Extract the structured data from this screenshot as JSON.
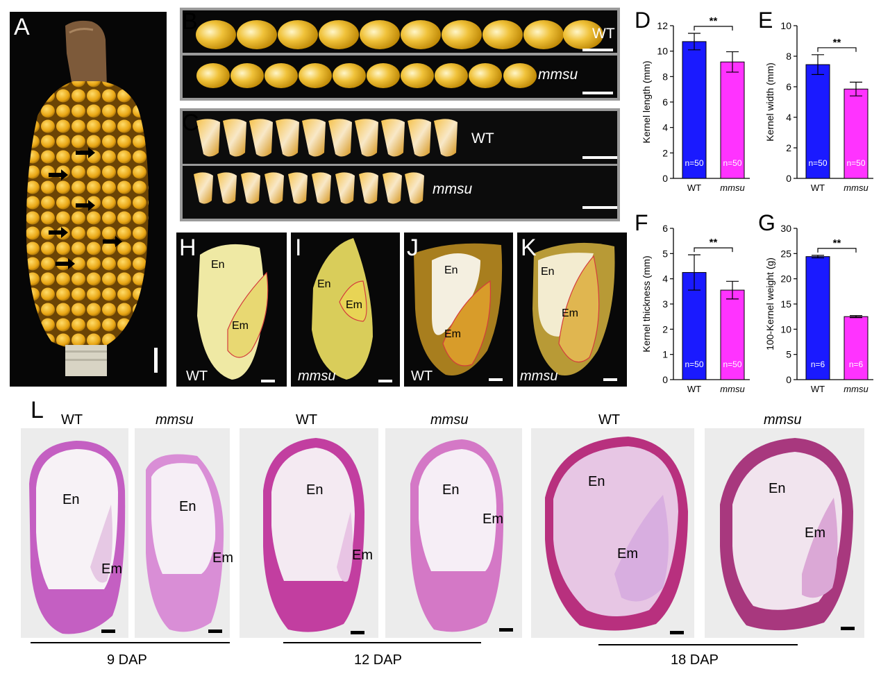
{
  "panels": {
    "A": {
      "letter": "A"
    },
    "B": {
      "letter": "B",
      "wt": "WT",
      "mut": "mmsu"
    },
    "C": {
      "letter": "C",
      "wt": "WT",
      "mut": "mmsu"
    },
    "H": {
      "letter": "H",
      "genotype": "WT",
      "en": "En",
      "em": "Em"
    },
    "I": {
      "letter": "I",
      "genotype": "mmsu",
      "en": "En",
      "em": "Em"
    },
    "J": {
      "letter": "J",
      "genotype": "WT",
      "en": "En",
      "em": "Em"
    },
    "K": {
      "letter": "K",
      "genotype": "mmsu",
      "en": "En",
      "em": "Em"
    },
    "L": {
      "letter": "L",
      "sections": [
        {
          "genotype": "WT",
          "en": "En",
          "em": "Em"
        },
        {
          "genotype": "mmsu",
          "en": "En",
          "em": "Em"
        },
        {
          "genotype": "WT",
          "en": "En",
          "em": "Em"
        },
        {
          "genotype": "mmsu",
          "en": "En",
          "em": "Em"
        },
        {
          "genotype": "WT",
          "en": "En",
          "em": "Em"
        },
        {
          "genotype": "mmsu",
          "en": "En",
          "em": "Em"
        }
      ],
      "stages": [
        "9 DAP",
        "12 DAP",
        "18 DAP"
      ]
    }
  },
  "colors": {
    "wt_bar": "#1a1aff",
    "mmsu_bar": "#ff33ff",
    "stain": "#c0399a"
  },
  "chart_data": [
    {
      "panel": "D",
      "type": "bar",
      "categories": [
        "WT",
        "mmsu"
      ],
      "values": [
        10.75,
        9.15
      ],
      "errors": [
        0.65,
        0.8
      ],
      "n_labels": [
        "n=50",
        "n=50"
      ],
      "ylabel": "Kernel length (mm)",
      "ylim": [
        0,
        12
      ],
      "yticks": [
        "0",
        "2",
        "4",
        "6",
        "8",
        "10",
        "12"
      ],
      "significance": "**"
    },
    {
      "panel": "E",
      "type": "bar",
      "categories": [
        "WT",
        "mmsu"
      ],
      "values": [
        7.45,
        5.85
      ],
      "errors": [
        0.65,
        0.45
      ],
      "n_labels": [
        "n=50",
        "n=50"
      ],
      "ylabel": "Kernel width (mm)",
      "ylim": [
        0,
        10
      ],
      "yticks": [
        "0",
        "2",
        "4",
        "6",
        "8",
        "10"
      ],
      "significance": "**"
    },
    {
      "panel": "F",
      "type": "bar",
      "categories": [
        "WT",
        "mmsu"
      ],
      "values": [
        4.25,
        3.55
      ],
      "errors": [
        0.7,
        0.35
      ],
      "n_labels": [
        "n=50",
        "n=50"
      ],
      "ylabel": "Kernel thickness (mm)",
      "ylim": [
        0,
        6
      ],
      "yticks": [
        "0",
        "1",
        "2",
        "3",
        "4",
        "5",
        "6"
      ],
      "significance": "**"
    },
    {
      "panel": "G",
      "type": "bar",
      "categories": [
        "WT",
        "mmsu"
      ],
      "values": [
        24.4,
        12.5
      ],
      "errors": [
        0.25,
        0.2
      ],
      "n_labels": [
        "n=6",
        "n=6"
      ],
      "ylabel": "100-Kernel weight (g)",
      "ylim": [
        0,
        30
      ],
      "yticks": [
        "0",
        "5",
        "10",
        "15",
        "20",
        "25",
        "30"
      ],
      "significance": "**"
    }
  ]
}
